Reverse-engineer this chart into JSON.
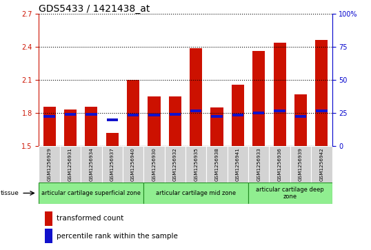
{
  "title": "GDS5433 / 1421438_at",
  "samples": [
    "GSM1256929",
    "GSM1256931",
    "GSM1256934",
    "GSM1256937",
    "GSM1256940",
    "GSM1256930",
    "GSM1256932",
    "GSM1256935",
    "GSM1256938",
    "GSM1256941",
    "GSM1256933",
    "GSM1256936",
    "GSM1256939",
    "GSM1256942"
  ],
  "red_values": [
    1.86,
    1.83,
    1.86,
    1.62,
    2.1,
    1.95,
    1.95,
    2.39,
    1.85,
    2.06,
    2.36,
    2.44,
    1.97,
    2.46
  ],
  "blue_values": [
    1.77,
    1.79,
    1.79,
    1.74,
    1.78,
    1.78,
    1.79,
    1.82,
    1.77,
    1.78,
    1.8,
    1.82,
    1.77,
    1.82
  ],
  "ylim_left": [
    1.5,
    2.7
  ],
  "yticks_left": [
    1.5,
    1.8,
    2.1,
    2.4,
    2.7
  ],
  "ylim_right": [
    0,
    100
  ],
  "yticks_right": [
    0,
    25,
    50,
    75,
    100
  ],
  "ytick_labels_right": [
    "0",
    "25",
    "50",
    "75",
    "100%"
  ],
  "bar_color_red": "#CC1100",
  "bar_color_blue": "#1111CC",
  "bar_width": 0.6,
  "background_plot": "#FFFFFF",
  "background_label": "#D3D3D3",
  "zone_color": "#90EE90",
  "zone_edge_color": "#228B22",
  "grid_color": "#000000",
  "left_axis_color": "#CC1100",
  "right_axis_color": "#0000CC",
  "title_fontsize": 10,
  "tick_fontsize": 7,
  "zone_fontsize": 6,
  "legend_fontsize": 7.5
}
